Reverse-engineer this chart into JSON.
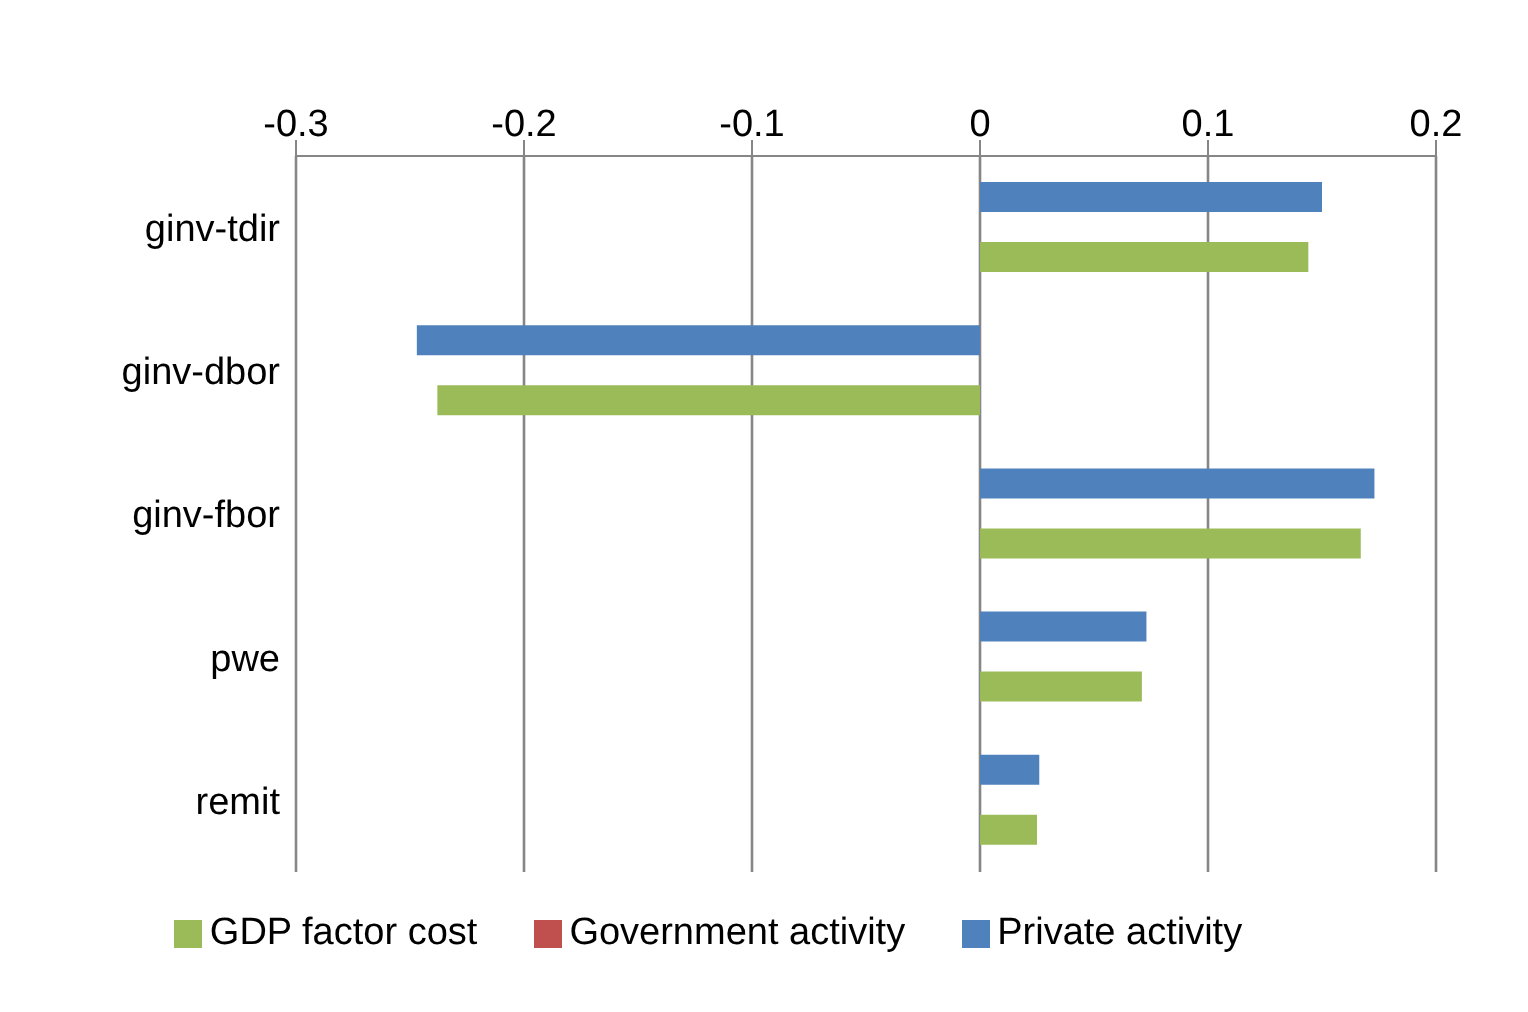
{
  "chart_data": {
    "type": "bar",
    "orientation": "horizontal",
    "categories": [
      "ginv-tdir",
      "ginv-dbor",
      "ginv-fbor",
      "pwe",
      "remit"
    ],
    "series": [
      {
        "name": "Private activity",
        "color": "#4f81bd",
        "values": [
          0.15,
          -0.247,
          0.173,
          0.073,
          0.026
        ]
      },
      {
        "name": "Government activity",
        "color": "#c0504d",
        "values": [
          0,
          0,
          0,
          0,
          0
        ]
      },
      {
        "name": "GDP factor cost",
        "color": "#9bbb59",
        "values": [
          0.144,
          -0.238,
          0.167,
          0.071,
          0.025
        ]
      }
    ],
    "xlim": [
      -0.3,
      0.2
    ],
    "xticks": [
      -0.3,
      -0.2,
      -0.1,
      0,
      0.1,
      0.2
    ],
    "grid": "x",
    "legend": "bottom"
  }
}
